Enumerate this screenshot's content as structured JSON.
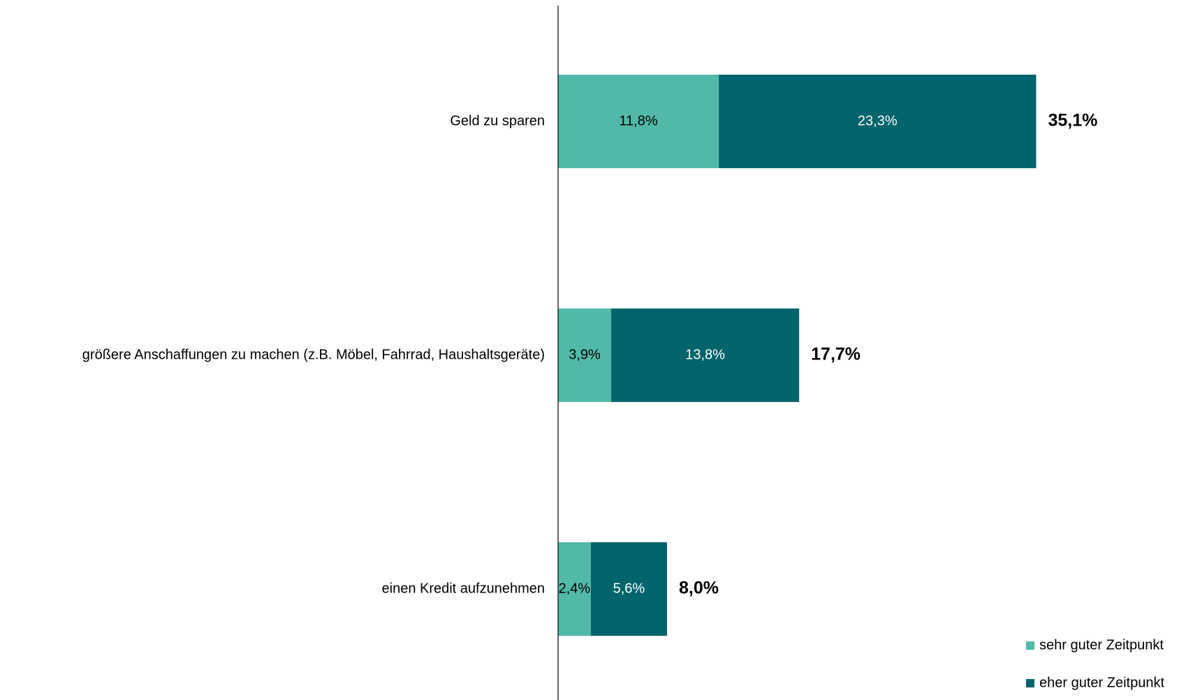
{
  "chart_data": {
    "type": "stacked-bar-horizontal",
    "categories": [
      "Geld zu sparen",
      "größere Anschaffungen zu machen (z.B. Möbel, Fahrrad, Haushaltsgeräte)",
      "einen Kredit aufzunehmen"
    ],
    "series": [
      {
        "name": "sehr guter Zeitpunkt",
        "color": "#52b9a9",
        "label_color": "#000000",
        "values": [
          11.8,
          3.9,
          2.4
        ],
        "value_labels": [
          "11,8%",
          "3,9%",
          "2,4%"
        ]
      },
      {
        "name": "eher guter Zeitpunkt",
        "color": "#00646c",
        "label_color": "#ffffff",
        "values": [
          23.3,
          13.8,
          5.6
        ],
        "value_labels": [
          "23,3%",
          "13,8%",
          "5,6%"
        ]
      }
    ],
    "totals": [
      35.1,
      17.7,
      8.0
    ],
    "total_labels": [
      "35,1%",
      "17,7%",
      "8,0%"
    ]
  }
}
